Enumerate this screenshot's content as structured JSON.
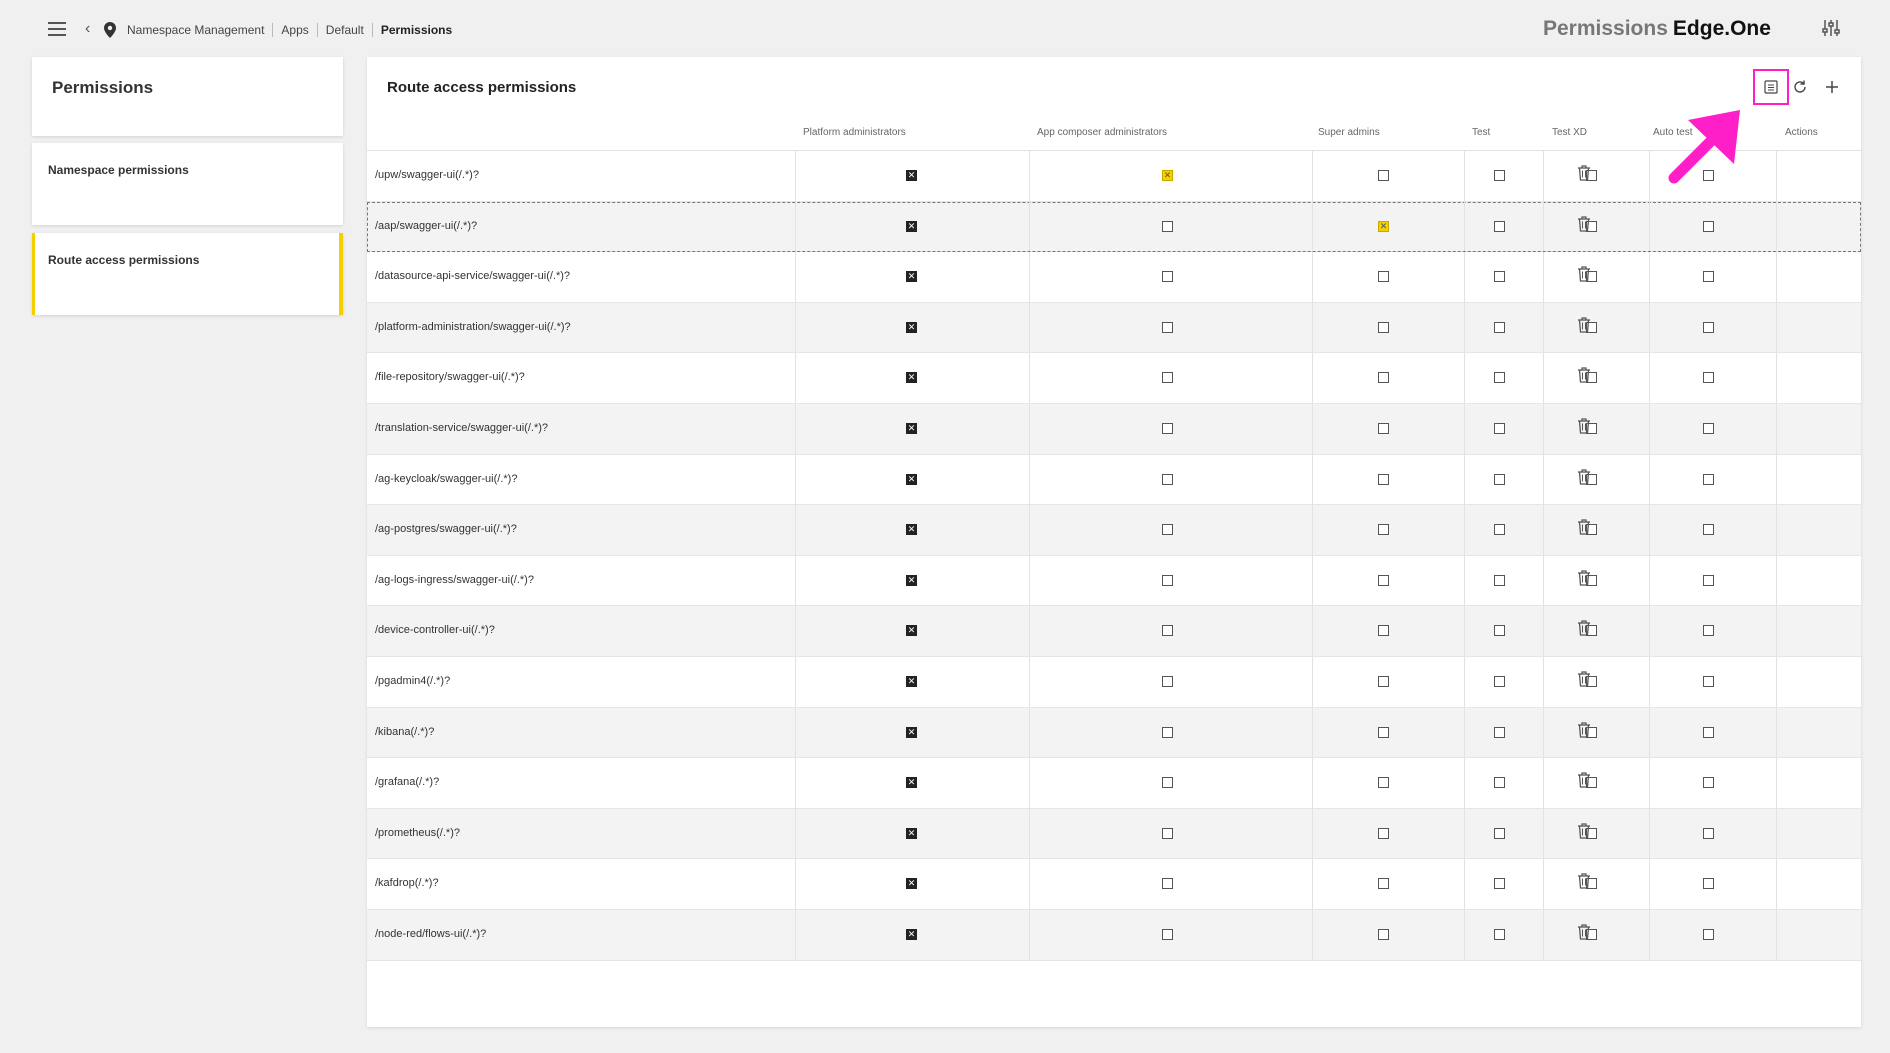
{
  "header": {
    "breadcrumb": [
      "Namespace Management",
      "Apps",
      "Default",
      "Permissions"
    ],
    "brand_light": "Permissions",
    "brand_bold": "Edge.One"
  },
  "sidebar": {
    "title": "Permissions",
    "items": [
      {
        "label": "Namespace permissions",
        "active": false
      },
      {
        "label": "Route access permissions",
        "active": true
      }
    ]
  },
  "main": {
    "title": "Route access permissions",
    "columns": [
      "Platform administrators",
      "App composer administrators",
      "Super admins",
      "Test",
      "Test XD",
      "Auto test",
      "Actions"
    ],
    "rows": [
      {
        "route": "/upw/swagger-ui(/.*)?",
        "perms": [
          "checked",
          "yellow",
          "empty",
          "empty",
          "empty",
          "empty"
        ]
      },
      {
        "route": "/aap/swagger-ui(/.*)?",
        "perms": [
          "checked",
          "empty",
          "yellow",
          "empty",
          "empty",
          "empty"
        ],
        "selected": true
      },
      {
        "route": "/datasource-api-service/swagger-ui(/.*)?",
        "perms": [
          "checked",
          "empty",
          "empty",
          "empty",
          "empty",
          "empty"
        ]
      },
      {
        "route": "/platform-administration/swagger-ui(/.*)?",
        "perms": [
          "checked",
          "empty",
          "empty",
          "empty",
          "empty",
          "empty"
        ]
      },
      {
        "route": "/file-repository/swagger-ui(/.*)?",
        "perms": [
          "checked",
          "empty",
          "empty",
          "empty",
          "empty",
          "empty"
        ]
      },
      {
        "route": "/translation-service/swagger-ui(/.*)?",
        "perms": [
          "checked",
          "empty",
          "empty",
          "empty",
          "empty",
          "empty"
        ]
      },
      {
        "route": "/ag-keycloak/swagger-ui(/.*)?",
        "perms": [
          "checked",
          "empty",
          "empty",
          "empty",
          "empty",
          "empty"
        ]
      },
      {
        "route": "/ag-postgres/swagger-ui(/.*)?",
        "perms": [
          "checked",
          "empty",
          "empty",
          "empty",
          "empty",
          "empty"
        ]
      },
      {
        "route": "/ag-logs-ingress/swagger-ui(/.*)?",
        "perms": [
          "checked",
          "empty",
          "empty",
          "empty",
          "empty",
          "empty"
        ]
      },
      {
        "route": "/device-controller-ui(/.*)?",
        "perms": [
          "checked",
          "empty",
          "empty",
          "empty",
          "empty",
          "empty"
        ]
      },
      {
        "route": "/pgadmin4(/.*)?",
        "perms": [
          "checked",
          "empty",
          "empty",
          "empty",
          "empty",
          "empty"
        ]
      },
      {
        "route": "/kibana(/.*)?",
        "perms": [
          "checked",
          "empty",
          "empty",
          "empty",
          "empty",
          "empty"
        ]
      },
      {
        "route": "/grafana(/.*)?",
        "perms": [
          "checked",
          "empty",
          "empty",
          "empty",
          "empty",
          "empty"
        ]
      },
      {
        "route": "/prometheus(/.*)?",
        "perms": [
          "checked",
          "empty",
          "empty",
          "empty",
          "empty",
          "empty"
        ]
      },
      {
        "route": "/kafdrop(/.*)?",
        "perms": [
          "checked",
          "empty",
          "empty",
          "empty",
          "empty",
          "empty"
        ]
      },
      {
        "route": "/node-red/flows-ui(/.*)?",
        "perms": [
          "checked",
          "empty",
          "empty",
          "empty",
          "empty",
          "empty"
        ]
      }
    ]
  },
  "icons": {
    "menu": "hamburger-icon",
    "back": "chevron-left-icon",
    "location": "map-pin-icon",
    "settings": "sliders-icon",
    "save": "save-icon",
    "refresh": "refresh-icon",
    "add": "plus-icon",
    "delete": "trash-icon",
    "annotation": "arrow-icon"
  },
  "colors": {
    "accent_yellow": "#f5d000",
    "annotation_pink": "#ff1fc8",
    "background": "#f0f0f0"
  }
}
